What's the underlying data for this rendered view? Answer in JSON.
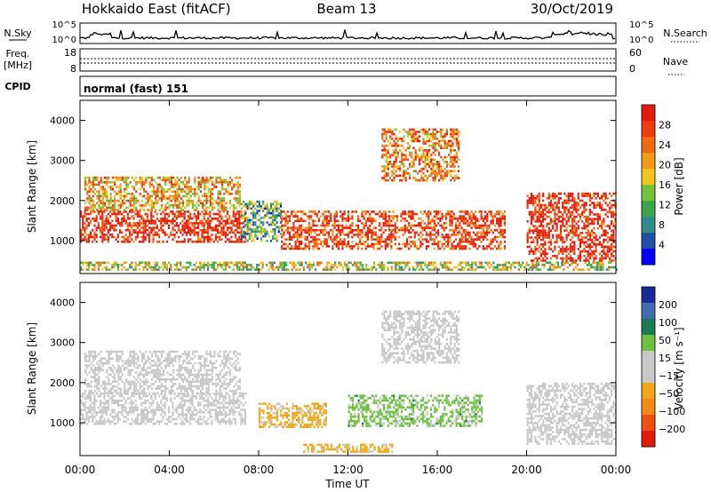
{
  "header": {
    "station": "Hokkaido East (fitACF)",
    "beam": "Beam 13",
    "date": "30/Oct/2019"
  },
  "top_strip": {
    "left_label_1": "N.Sky",
    "left_ticks": [
      "10^5",
      "10^0"
    ],
    "right_ticks": [
      "10^5",
      "10^0"
    ],
    "right_label": "N.Search"
  },
  "freq_strip": {
    "left_label_1": "Freq.",
    "left_label_2": "[MHz]",
    "left_ticks": [
      "18",
      "8"
    ],
    "right_ticks": [
      "60",
      "0"
    ],
    "right_label": "Nave"
  },
  "cpid": {
    "label": "CPID",
    "value": "normal (fast) 151"
  },
  "chart_data": [
    {
      "type": "heatmap",
      "quantity": "power",
      "x_ticks": [
        "00:00",
        "04:00",
        "08:00",
        "12:00",
        "16:00",
        "20:00",
        "00:00"
      ],
      "xlabel": "Time UT",
      "ylabel": "Slant Range [km]",
      "y_ticks": [
        1000,
        2000,
        3000,
        4000
      ],
      "ylim": [
        180,
        4500
      ],
      "colorbar": {
        "label": "Power [dB]",
        "ticks": [
          4,
          8,
          12,
          16,
          20,
          24,
          28
        ],
        "colors": [
          "#0000ff",
          "#2050a8",
          "#2f8c8a",
          "#3aa64a",
          "#73c23a",
          "#f1c419",
          "#f59a17",
          "#f06a12",
          "#ee3a0e",
          "#e41a0a"
        ]
      },
      "bands": [
        {
          "t": [
            0.0,
            7.4
          ],
          "r": [
            950,
            1750
          ],
          "value": 28
        },
        {
          "t": [
            0.2,
            7.2
          ],
          "r": [
            1750,
            2600
          ],
          "value": 20
        },
        {
          "t": [
            7.2,
            9.0
          ],
          "r": [
            1000,
            2000
          ],
          "value": 12
        },
        {
          "t": [
            9.0,
            19.0
          ],
          "r": [
            800,
            1750
          ],
          "value": 26
        },
        {
          "t": [
            13.5,
            17.0
          ],
          "r": [
            2500,
            3800
          ],
          "value": 22
        },
        {
          "t": [
            20.0,
            24.0
          ],
          "r": [
            500,
            2200
          ],
          "value": 28
        },
        {
          "t": [
            0.0,
            24.0
          ],
          "r": [
            300,
            480
          ],
          "value": 16
        }
      ]
    },
    {
      "type": "heatmap",
      "quantity": "velocity",
      "x_ticks": [
        "00:00",
        "04:00",
        "08:00",
        "12:00",
        "16:00",
        "20:00",
        "00:00"
      ],
      "xlabel": "Time UT",
      "ylabel": "Slant Range [km]",
      "y_ticks": [
        1000,
        2000,
        3000,
        4000
      ],
      "ylim": [
        180,
        4500
      ],
      "colorbar": {
        "label": "Velocity [m s⁻¹]",
        "ticks": [
          200,
          100,
          50,
          15,
          -15,
          -50,
          -100,
          -200
        ],
        "colors": [
          "#1a2a9a",
          "#3e6eb0",
          "#1e7a52",
          "#6cc23c",
          "#c8c8c8",
          "#c8c8c8",
          "#f0a818",
          "#f58a18",
          "#f0500e",
          "#e41a0a"
        ]
      },
      "bands": [
        {
          "t": [
            0.0,
            7.4
          ],
          "r": [
            950,
            1750
          ],
          "value": 0
        },
        {
          "t": [
            0.2,
            7.2
          ],
          "r": [
            1750,
            2800
          ],
          "value": 0
        },
        {
          "t": [
            8.0,
            11.0
          ],
          "r": [
            900,
            1500
          ],
          "value": -60
        },
        {
          "t": [
            12.0,
            18.0
          ],
          "r": [
            900,
            1700
          ],
          "value": 60
        },
        {
          "t": [
            13.5,
            17.0
          ],
          "r": [
            2500,
            3800
          ],
          "value": 0
        },
        {
          "t": [
            20.0,
            24.0
          ],
          "r": [
            500,
            2000
          ],
          "value": 0
        },
        {
          "t": [
            10.0,
            14.0
          ],
          "r": [
            300,
            480
          ],
          "value": -60
        }
      ]
    }
  ]
}
